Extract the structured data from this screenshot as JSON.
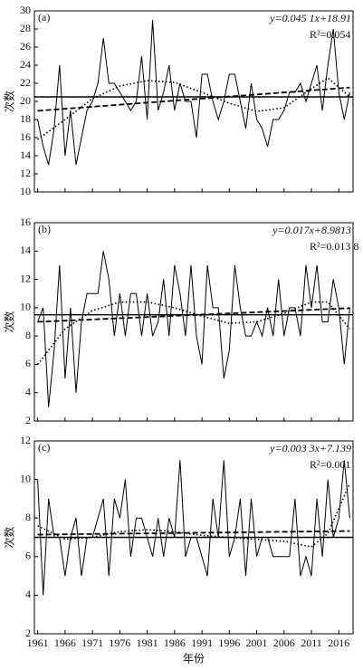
{
  "chart_data": [
    {
      "type": "line",
      "label": "(a)",
      "equation": "y=0.045 1x+18.91",
      "r2": "R²=0.054",
      "ylabel": "次数",
      "x": [
        1961,
        1962,
        1963,
        1964,
        1965,
        1966,
        1967,
        1968,
        1969,
        1970,
        1971,
        1972,
        1973,
        1974,
        1975,
        1976,
        1977,
        1978,
        1979,
        1980,
        1981,
        1982,
        1983,
        1984,
        1985,
        1986,
        1987,
        1988,
        1989,
        1990,
        1991,
        1992,
        1993,
        1994,
        1995,
        1996,
        1997,
        1998,
        1999,
        2000,
        2001,
        2002,
        2003,
        2004,
        2005,
        2006,
        2007,
        2008,
        2009,
        2010,
        2011,
        2012,
        2013,
        2014,
        2015,
        2016,
        2017,
        2018
      ],
      "values": [
        18,
        15,
        13,
        17,
        24,
        14,
        19,
        13,
        16,
        19,
        20,
        22,
        27,
        22,
        22,
        21,
        20,
        19,
        20,
        25,
        18,
        29,
        19,
        21,
        24,
        19,
        22,
        20,
        20,
        16,
        23,
        23,
        20,
        18,
        20,
        23,
        23,
        20,
        17,
        22,
        18,
        17,
        15,
        18,
        18,
        19,
        21,
        21,
        22,
        20,
        22,
        24,
        19,
        24,
        28,
        21,
        18,
        21
      ],
      "ylim": [
        10,
        30
      ],
      "yticks": [
        10,
        12,
        14,
        16,
        18,
        20,
        22,
        24,
        26,
        28,
        30
      ],
      "xlim": [
        1960.4,
        2018.6
      ],
      "xticks": [
        1961,
        1966,
        1971,
        1976,
        1981,
        1986,
        1991,
        1996,
        2001,
        2006,
        2011,
        2016
      ],
      "fits": [
        {
          "style": "solid",
          "x": [
            1960.4,
            2018.6
          ],
          "values": [
            20.5,
            20.5
          ]
        },
        {
          "style": "dashed",
          "x": [
            1961,
            2018
          ],
          "values": [
            18.96,
            21.53
          ]
        },
        {
          "style": "dotted",
          "x": [
            1961,
            1966,
            1971,
            1976,
            1981,
            1986,
            1991,
            1996,
            2001,
            2006,
            2011,
            2014,
            2018
          ],
          "values": [
            15.8,
            18,
            20.3,
            21.7,
            22.3,
            22.1,
            21,
            19.8,
            18.9,
            19.3,
            21.4,
            22.6,
            20.5
          ]
        }
      ]
    },
    {
      "type": "line",
      "label": "(b)",
      "equation": "y=0.017x+8.9813",
      "r2": "R²=0.013 8",
      "ylabel": "次数",
      "x": [
        1961,
        1962,
        1963,
        1964,
        1965,
        1966,
        1967,
        1968,
        1969,
        1970,
        1971,
        1972,
        1973,
        1974,
        1975,
        1976,
        1977,
        1978,
        1979,
        1980,
        1981,
        1982,
        1983,
        1984,
        1985,
        1986,
        1987,
        1988,
        1989,
        1990,
        1991,
        1992,
        1993,
        1994,
        1995,
        1996,
        1997,
        1998,
        1999,
        2000,
        2001,
        2002,
        2003,
        2004,
        2005,
        2006,
        2007,
        2008,
        2009,
        2010,
        2011,
        2012,
        2013,
        2014,
        2015,
        2016,
        2017,
        2018
      ],
      "values": [
        9,
        10,
        3,
        7,
        13,
        5,
        10,
        4,
        9,
        11,
        11,
        11,
        14,
        12,
        8,
        11,
        8,
        11,
        11,
        8,
        11,
        8,
        9,
        12,
        8,
        13,
        11,
        8,
        13,
        8,
        6,
        13,
        10,
        10,
        5,
        7,
        13,
        10,
        8,
        8,
        9,
        8,
        10,
        8,
        12,
        8,
        10,
        10,
        8,
        13,
        10,
        13,
        9,
        9,
        12,
        10,
        6,
        10
      ],
      "ylim": [
        2,
        16
      ],
      "yticks": [
        2,
        4,
        6,
        8,
        10,
        12,
        14,
        16
      ],
      "xlim": [
        1960.4,
        2018.6
      ],
      "xticks": [
        1961,
        1966,
        1971,
        1976,
        1981,
        1986,
        1991,
        1996,
        2001,
        2006,
        2011,
        2016
      ],
      "fits": [
        {
          "style": "solid",
          "x": [
            1960.4,
            2018.6
          ],
          "values": [
            9.5,
            9.5
          ]
        },
        {
          "style": "dashed",
          "x": [
            1961,
            2018
          ],
          "values": [
            9.0,
            9.97
          ]
        },
        {
          "style": "dotted",
          "x": [
            1961,
            1966,
            1971,
            1976,
            1981,
            1986,
            1991,
            1996,
            2001,
            2006,
            2011,
            2014,
            2018
          ],
          "values": [
            6,
            8.5,
            9.8,
            10.4,
            10.4,
            10,
            9.4,
            8.9,
            9,
            9.6,
            10.4,
            10.4,
            8.5
          ]
        }
      ]
    },
    {
      "type": "line",
      "label": "(c)",
      "equation": "y=0.003 3x+7.139",
      "r2": "R²=0.001",
      "ylabel": "次数",
      "xlabel": "年份",
      "x": [
        1961,
        1962,
        1963,
        1964,
        1965,
        1966,
        1967,
        1968,
        1969,
        1970,
        1971,
        1972,
        1973,
        1974,
        1975,
        1976,
        1977,
        1978,
        1979,
        1980,
        1981,
        1982,
        1983,
        1984,
        1985,
        1986,
        1987,
        1988,
        1989,
        1990,
        1991,
        1992,
        1993,
        1994,
        1995,
        1996,
        1997,
        1998,
        1999,
        2000,
        2001,
        2002,
        2003,
        2004,
        2005,
        2006,
        2007,
        2008,
        2009,
        2010,
        2011,
        2012,
        2013,
        2014,
        2015,
        2016,
        2017,
        2018
      ],
      "values": [
        10,
        4,
        9,
        7,
        7,
        5,
        7,
        8,
        5,
        7,
        7,
        8,
        9,
        5,
        9,
        8,
        10,
        6,
        8,
        8,
        7,
        6,
        8,
        6,
        8,
        7,
        11,
        6,
        7,
        7,
        6,
        5,
        9,
        7,
        11,
        6,
        7,
        9,
        5,
        9,
        6,
        7,
        7,
        6,
        6,
        6,
        6,
        9,
        5,
        6,
        5,
        9,
        6,
        10,
        7,
        8,
        11,
        8
      ],
      "ylim": [
        2,
        12
      ],
      "yticks": [
        2,
        4,
        6,
        8,
        10,
        12
      ],
      "xlim": [
        1960.4,
        2018.6
      ],
      "xticks": [
        1961,
        1966,
        1971,
        1976,
        1981,
        1986,
        1991,
        1996,
        2001,
        2006,
        2011,
        2016
      ],
      "fits": [
        {
          "style": "solid",
          "x": [
            1960.4,
            2018.6
          ],
          "values": [
            7.0,
            7.0
          ]
        },
        {
          "style": "dashed",
          "x": [
            1961,
            2018
          ],
          "values": [
            7.14,
            7.33
          ]
        },
        {
          "style": "dotted",
          "x": [
            1961,
            1966,
            1971,
            1976,
            1981,
            1986,
            1991,
            1996,
            2001,
            2006,
            2011,
            2014,
            2018
          ],
          "values": [
            7.6,
            6.9,
            7.0,
            7.3,
            7.4,
            7.3,
            7.1,
            7.0,
            6.9,
            6.8,
            6.5,
            7.2,
            9.8
          ]
        }
      ]
    }
  ]
}
